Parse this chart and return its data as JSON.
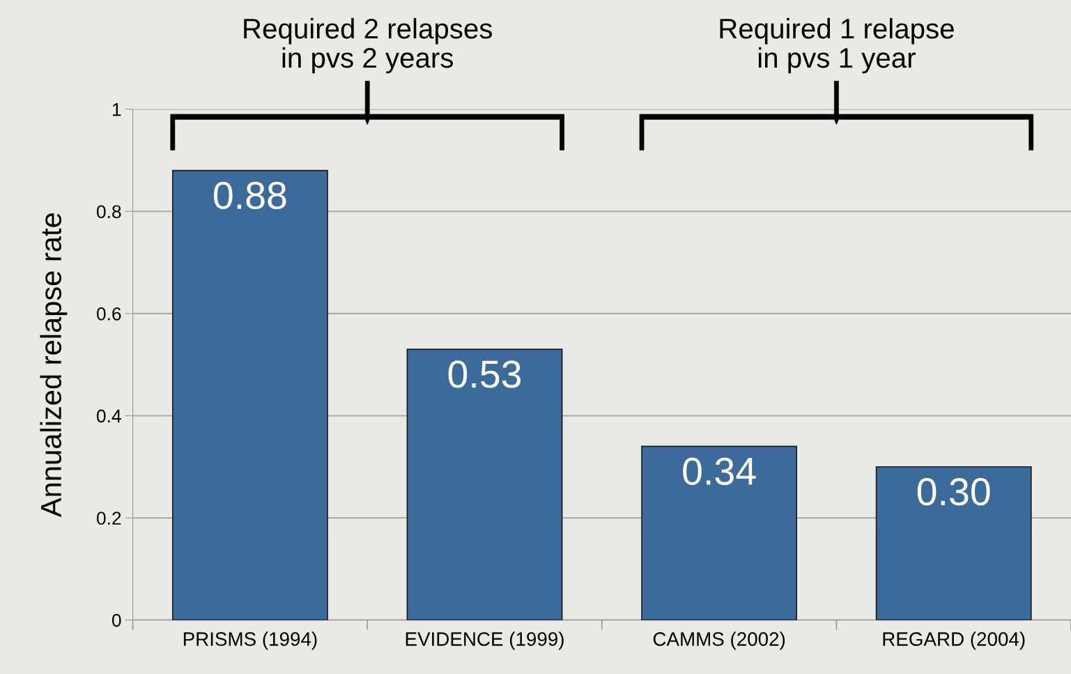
{
  "chart_data": {
    "type": "bar",
    "ylabel": "Annualized relapse rate",
    "categories": [
      "PRISMS (1994)",
      "EVIDENCE (1999)",
      "CAMMS (2002)",
      "REGARD (2004)"
    ],
    "values": [
      0.88,
      0.53,
      0.34,
      0.3
    ],
    "value_labels": [
      "0.88",
      "0.53",
      "0.34",
      "0.30"
    ],
    "color": "#3b6a9b",
    "ylim": [
      0,
      1
    ],
    "yticks": [
      0,
      0.2,
      0.4,
      0.6,
      0.8,
      1
    ],
    "grid": "y",
    "annotations": [
      "Required 2 relapses\nin pvs 2 years",
      "Required 1 relapse\nin pvs 1 year"
    ]
  }
}
